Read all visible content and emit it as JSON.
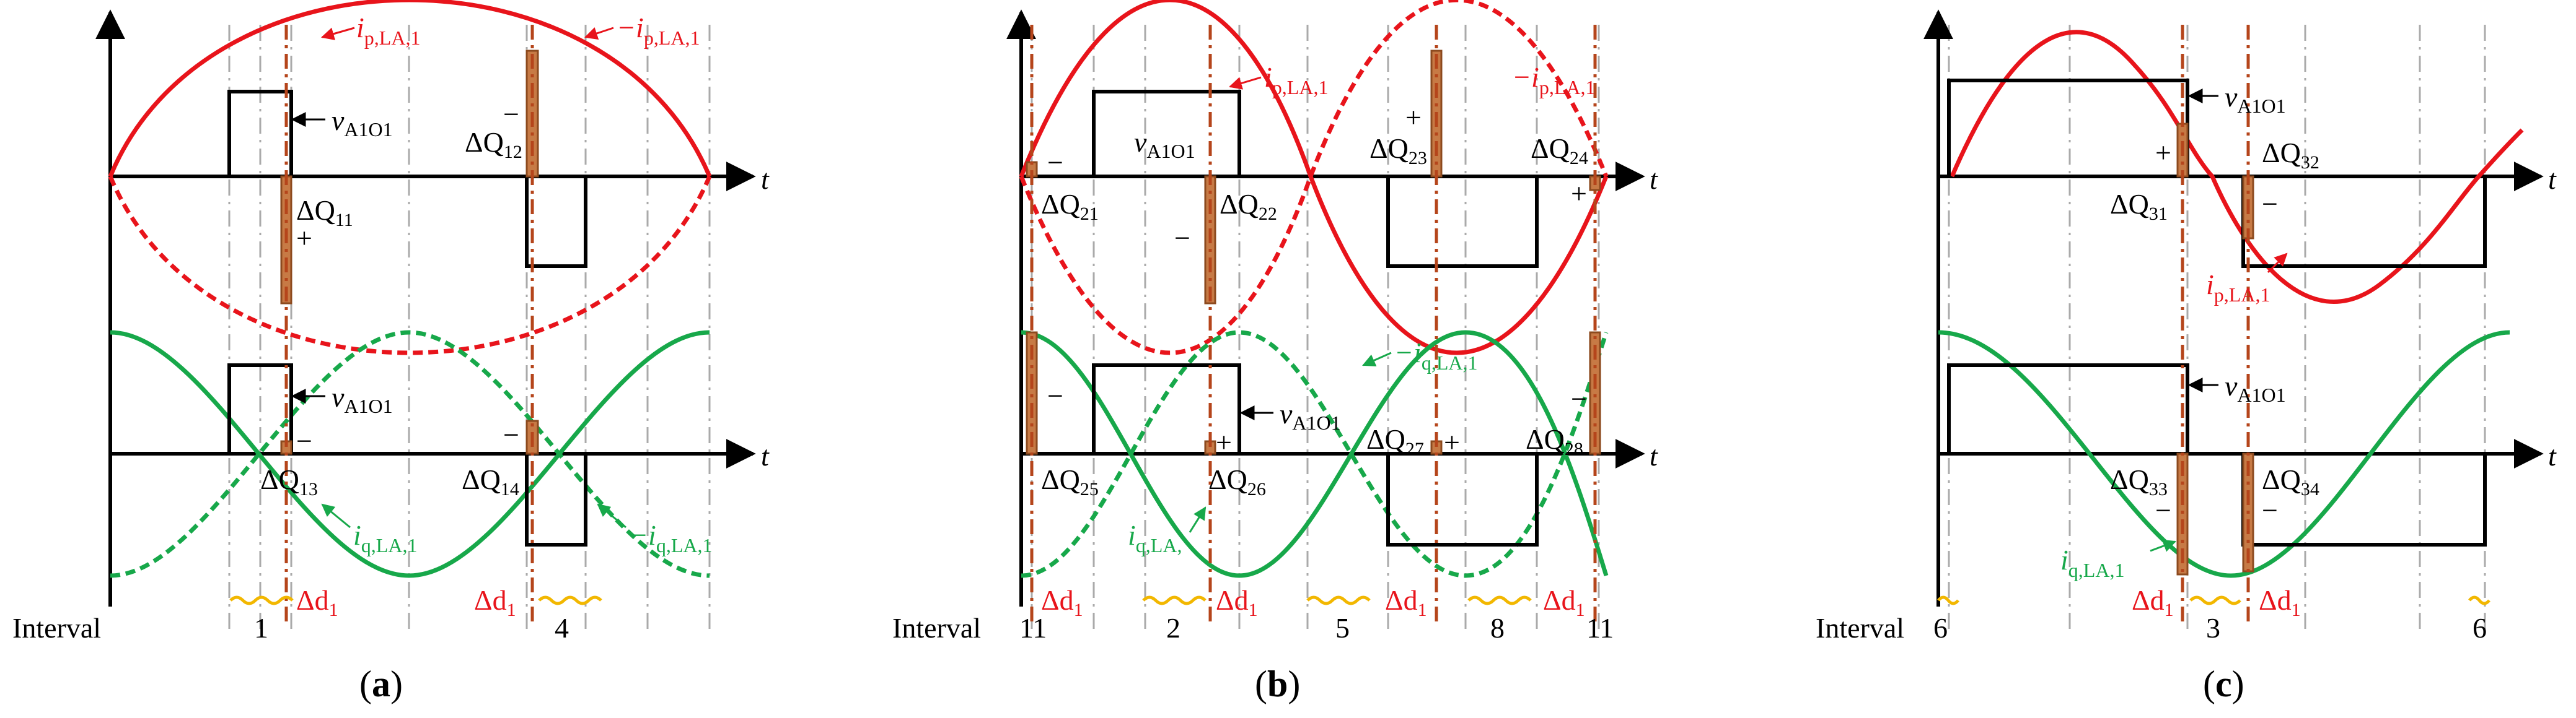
{
  "colors": {
    "current": "#e8141b",
    "q_current": "#17a84a",
    "voltage": "#000000",
    "charge_fill": "#c77a45",
    "charge_stroke": "#8c4a1e",
    "marker": "#b5451b",
    "grid": "#aaaaaa",
    "interval": "#f2b700",
    "delta": "#e8141b"
  },
  "common": {
    "t_axis": "t",
    "interval_label": "Interval",
    "dd_base": "Δd",
    "dd_sub": "1",
    "v_base": "v",
    "v_sub": "A1O1",
    "ip_base": "i",
    "ip_sub": "p,LA,1",
    "ip_neg_prefix": "−",
    "iq_base": "i",
    "iq_sub": "q,LA,1",
    "iq_sub_short": "q,LA,",
    "iq_neg_prefix": "−",
    "dq_base": "ΔQ",
    "plus": "+",
    "minus": "−"
  },
  "panels": {
    "a": {
      "caption_open": "(",
      "caption_letter": "a",
      "caption_close": ")",
      "dq": [
        "11",
        "12",
        "13",
        "14"
      ],
      "intervals": [
        "1",
        "4"
      ]
    },
    "b": {
      "caption_open": "(",
      "caption_letter": "b",
      "caption_close": ")",
      "dq": [
        "21",
        "22",
        "23",
        "24",
        "25",
        "26",
        "27",
        "28"
      ],
      "intervals": [
        "11",
        "2",
        "5",
        "8",
        "11"
      ]
    },
    "c": {
      "caption_open": "(",
      "caption_letter": "c",
      "caption_close": ")",
      "dq": [
        "31",
        "32",
        "33",
        "34"
      ],
      "intervals": [
        "6",
        "3",
        "6"
      ]
    }
  }
}
